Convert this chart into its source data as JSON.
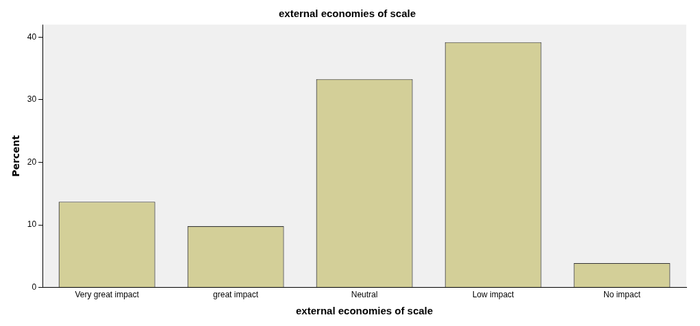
{
  "chart_data": {
    "type": "bar",
    "title": "external economies of scale",
    "xlabel": "external economies of scale",
    "ylabel": "Percent",
    "categories": [
      "Very great impact",
      "great impact",
      "Neutral",
      "Low impact",
      "No impact"
    ],
    "values": [
      13.7,
      9.8,
      33.3,
      39.2,
      3.9
    ],
    "color": "#d3cf98",
    "ylim": [
      0,
      42
    ],
    "yticks": [
      0,
      10,
      20,
      30,
      40
    ],
    "grid": false,
    "legend": false
  }
}
